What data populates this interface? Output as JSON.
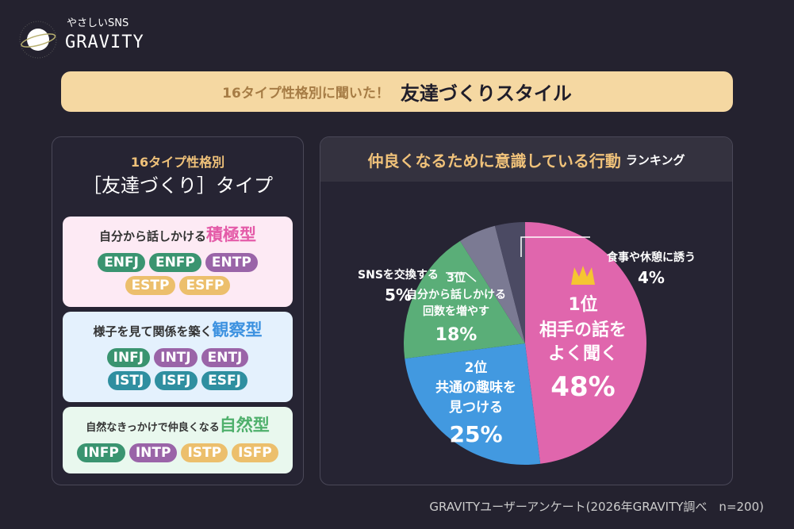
{
  "brand": {
    "sub": "やさしいSNS",
    "name": "GRAVITY"
  },
  "banner": {
    "pre": "16タイプ性格別に聞いた！",
    "main": "友達づくりスタイル"
  },
  "left": {
    "title1": "16タイプ性格別",
    "title2": "［友達づくり］タイプ",
    "cards": [
      {
        "lead": "自分から話しかける",
        "type": "積極型",
        "bg": "#fdeaf4",
        "accent": "#e45ba8",
        "tags": [
          {
            "t": "ENFJ",
            "c": "#3a9470"
          },
          {
            "t": "ENFP",
            "c": "#3a9470"
          },
          {
            "t": "ENTP",
            "c": "#9a64a8"
          },
          {
            "t": "ESTP",
            "c": "#ecbf6c"
          },
          {
            "t": "ESFP",
            "c": "#ecbf6c"
          }
        ]
      },
      {
        "lead": "様子を見て関係を築く",
        "type": "観察型",
        "bg": "#e4f1fd",
        "accent": "#3d92e0",
        "tags": [
          {
            "t": "INFJ",
            "c": "#3a9470"
          },
          {
            "t": "INTJ",
            "c": "#9a64a8"
          },
          {
            "t": "ENTJ",
            "c": "#9a64a8"
          },
          {
            "t": "ISTJ",
            "c": "#2f8fa0"
          },
          {
            "t": "ISFJ",
            "c": "#2f8fa0"
          },
          {
            "t": "ESFJ",
            "c": "#2f8fa0"
          }
        ]
      },
      {
        "lead": "自然なきっかけで仲良くなる",
        "type": "自然型",
        "bg": "#e9f8ee",
        "accent": "#4fb06c",
        "tags": [
          {
            "t": "INFP",
            "c": "#3a9470"
          },
          {
            "t": "INTP",
            "c": "#9a64a8"
          },
          {
            "t": "ISTP",
            "c": "#ecbf6c"
          },
          {
            "t": "ISFP",
            "c": "#ecbf6c"
          }
        ]
      }
    ]
  },
  "right": {
    "title": "仲良くなるために意識している行動",
    "title_suffix": "ランキング"
  },
  "chart_data": {
    "type": "pie",
    "unit": "%",
    "slices": [
      {
        "rank": "1位",
        "label": "相手の話をよく聞く",
        "lines": [
          "相手の話を",
          "よく聞く"
        ],
        "value": 48,
        "pct": "48%",
        "color": "#e066ad"
      },
      {
        "rank": "2位",
        "label": "共通の趣味を見つける",
        "lines": [
          "共通の趣味を",
          "見つける"
        ],
        "value": 25,
        "pct": "25%",
        "color": "#4299e0"
      },
      {
        "rank": "3位",
        "label": "自分から話しかける回数を増やす",
        "lines": [
          "自分から話しかける",
          "回数を増やす"
        ],
        "value": 18,
        "pct": "18%",
        "color": "#5aae78"
      },
      {
        "label": "SNSを交換する",
        "value": 5,
        "pct": "5%",
        "color": "#7b7a93"
      },
      {
        "label": "食事や休憩に誘う",
        "value": 4,
        "pct": "4%",
        "color": "#4b4a63"
      }
    ]
  },
  "footer": "GRAVITYユーザーアンケート(2026年GRAVITY調べ　n=200)"
}
